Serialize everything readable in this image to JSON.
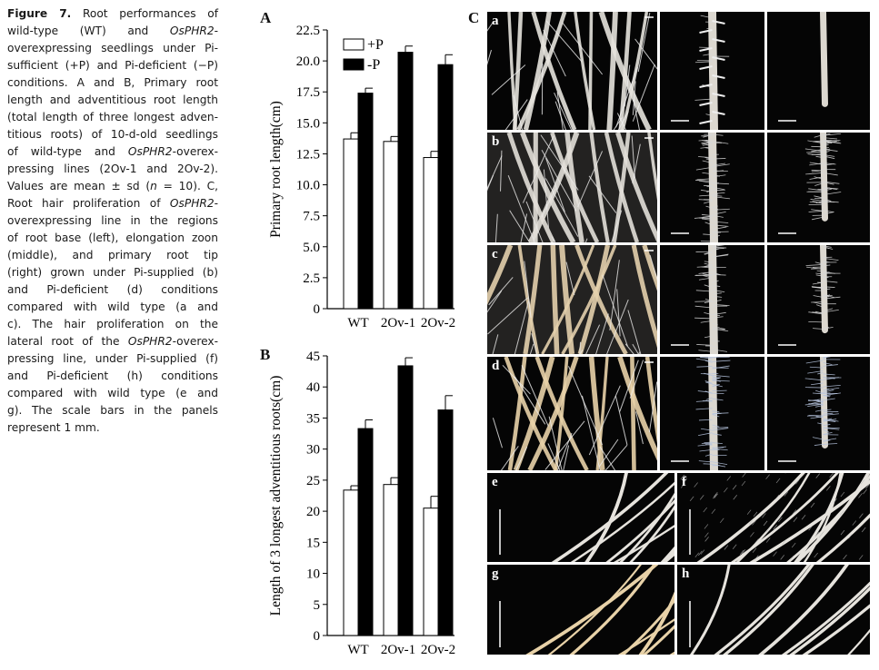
{
  "caption": {
    "lines": [
      [
        {
          "t": "Figure 7.",
          "b": true
        },
        {
          "t": " Root performances of"
        }
      ],
      [
        {
          "t": "wild-type (WT) and "
        },
        {
          "t": "OsPHR2",
          "i": true
        },
        {
          "t": "-"
        }
      ],
      [
        {
          "t": "overexpressing seedlings under Pi-"
        }
      ],
      [
        {
          "t": "sufficient (+P) and Pi-deficient (−P)"
        }
      ],
      [
        {
          "t": "conditions. A and B, Primary root"
        }
      ],
      [
        {
          "t": "length and adventitious root length"
        }
      ],
      [
        {
          "t": "(total length of three longest adven-"
        }
      ],
      [
        {
          "t": "titious roots) of 10-d-old seedlings"
        }
      ],
      [
        {
          "t": "of wild-type and "
        },
        {
          "t": "OsPHR2",
          "i": true
        },
        {
          "t": "-overex-"
        }
      ],
      [
        {
          "t": "pressing lines (2Ov-1 and 2Ov-2)."
        }
      ],
      [
        {
          "t": "Values are mean ± sd ("
        },
        {
          "t": "n",
          "i": true
        },
        {
          "t": " = 10). C,"
        }
      ],
      [
        {
          "t": "Root hair proliferation of "
        },
        {
          "t": "OsPHR2",
          "i": true
        },
        {
          "t": "-"
        }
      ],
      [
        {
          "t": "overexpressing line in the regions"
        }
      ],
      [
        {
          "t": "of root base (left), elongation zoon"
        }
      ],
      [
        {
          "t": "(middle), and primary root tip"
        }
      ],
      [
        {
          "t": "(right) grown under Pi-supplied (b)"
        }
      ],
      [
        {
          "t": "and Pi-deficient (d) conditions"
        }
      ],
      [
        {
          "t": "compared with wild type (a and"
        }
      ],
      [
        {
          "t": "c). The hair proliferation on the"
        }
      ],
      [
        {
          "t": "lateral root of the "
        },
        {
          "t": "OsPHR2",
          "i": true
        },
        {
          "t": "-overex-"
        }
      ],
      [
        {
          "t": "pressing line, under Pi-supplied (f)"
        }
      ],
      [
        {
          "t": "and Pi-deficient (h) conditions"
        }
      ],
      [
        {
          "t": "compared with wild type (e and"
        }
      ],
      [
        {
          "t": "g). The scale bars in the panels"
        }
      ],
      [
        {
          "t": "represent 1 mm."
        }
      ]
    ]
  },
  "panels": {
    "a_label": "A",
    "b_label": "B",
    "c_label": "C"
  },
  "photos": [
    "a",
    "b",
    "c",
    "d",
    "e",
    "f",
    "g",
    "h"
  ],
  "chart_data": [
    {
      "type": "bar",
      "panel": "A",
      "title": "",
      "ylabel": "Primary root length(cm)",
      "xlabel": "",
      "categories": [
        "WT",
        "2Ov-1",
        "2Ov-2"
      ],
      "ylim": [
        0,
        22.5
      ],
      "yticks": [
        0,
        2.5,
        5.0,
        7.5,
        10.0,
        12.5,
        15.0,
        17.5,
        20.0,
        22.5
      ],
      "ytick_labels": [
        "0",
        "2.5",
        "5.0",
        "7.5",
        "10.0",
        "12.5",
        "15.0",
        "17.5",
        "20.0",
        "22.5"
      ],
      "legend": "top-left",
      "series": [
        {
          "name": "+P",
          "color": "#ffffff",
          "values": [
            13.7,
            13.5,
            12.2
          ],
          "errors": [
            0.5,
            0.4,
            0.5
          ]
        },
        {
          "name": "-P",
          "color": "#000000",
          "values": [
            17.4,
            20.7,
            19.7
          ],
          "errors": [
            0.4,
            0.5,
            0.8
          ]
        }
      ]
    },
    {
      "type": "bar",
      "panel": "B",
      "title": "",
      "ylabel": "Length of 3 longest adventitious roots(cm)",
      "xlabel": "",
      "categories": [
        "WT",
        "2Ov-1",
        "2Ov-2"
      ],
      "ylim": [
        0,
        45
      ],
      "yticks": [
        0,
        5,
        10,
        15,
        20,
        25,
        30,
        35,
        40,
        45
      ],
      "ytick_labels": [
        "0",
        "5",
        "10",
        "15",
        "20",
        "25",
        "30",
        "35",
        "40",
        "45"
      ],
      "series": [
        {
          "name": "+P",
          "color": "#ffffff",
          "values": [
            23.4,
            24.3,
            20.5
          ],
          "errors": [
            0.7,
            1.1,
            1.9
          ]
        },
        {
          "name": "-P",
          "color": "#000000",
          "values": [
            33.3,
            43.4,
            36.3
          ],
          "errors": [
            1.4,
            1.3,
            2.3
          ]
        }
      ]
    }
  ]
}
